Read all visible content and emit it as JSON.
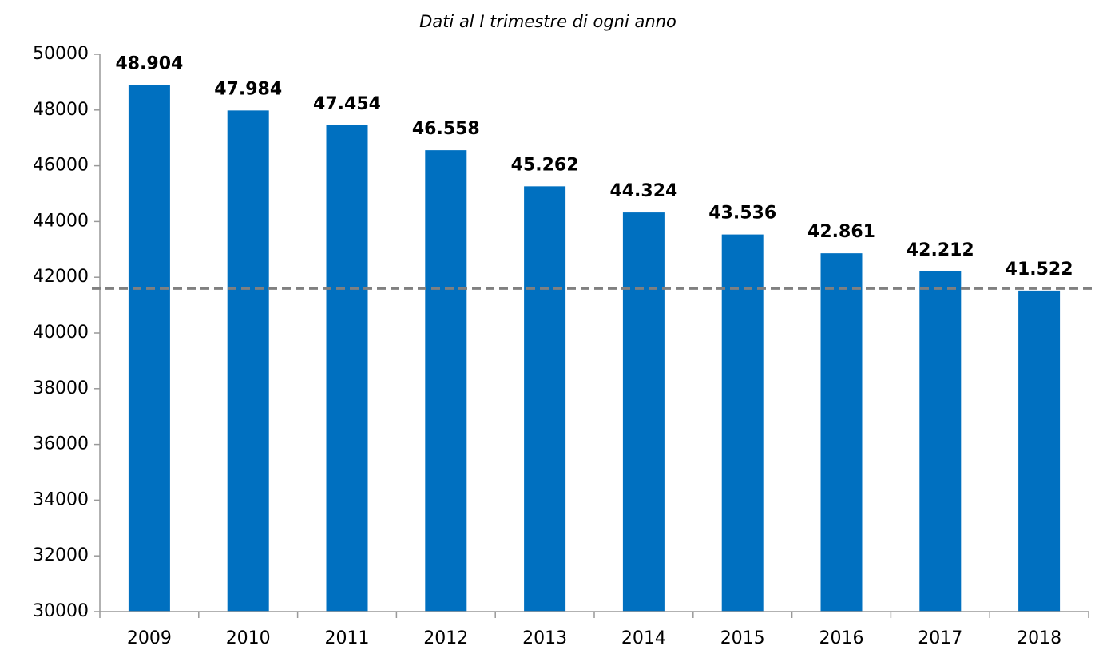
{
  "chart_data": {
    "type": "bar",
    "subtitle": "Dati al I trimestre di ogni anno",
    "categories": [
      "2009",
      "2010",
      "2011",
      "2012",
      "2013",
      "2014",
      "2015",
      "2016",
      "2017",
      "2018"
    ],
    "values": [
      48904,
      47984,
      47454,
      46558,
      45262,
      44324,
      43536,
      42861,
      42212,
      41522
    ],
    "value_labels": [
      "48.904",
      "47.984",
      "47.454",
      "46.558",
      "45.262",
      "44.324",
      "43.536",
      "42.861",
      "42.212",
      "41.522"
    ],
    "color": "#0070c0",
    "ylim": [
      30000,
      50000
    ],
    "yticks": [
      30000,
      32000,
      34000,
      36000,
      38000,
      40000,
      42000,
      44000,
      46000,
      48000,
      50000
    ],
    "grid": false,
    "hline": {
      "value": 41600,
      "color": "#808080",
      "dashed": true
    }
  }
}
